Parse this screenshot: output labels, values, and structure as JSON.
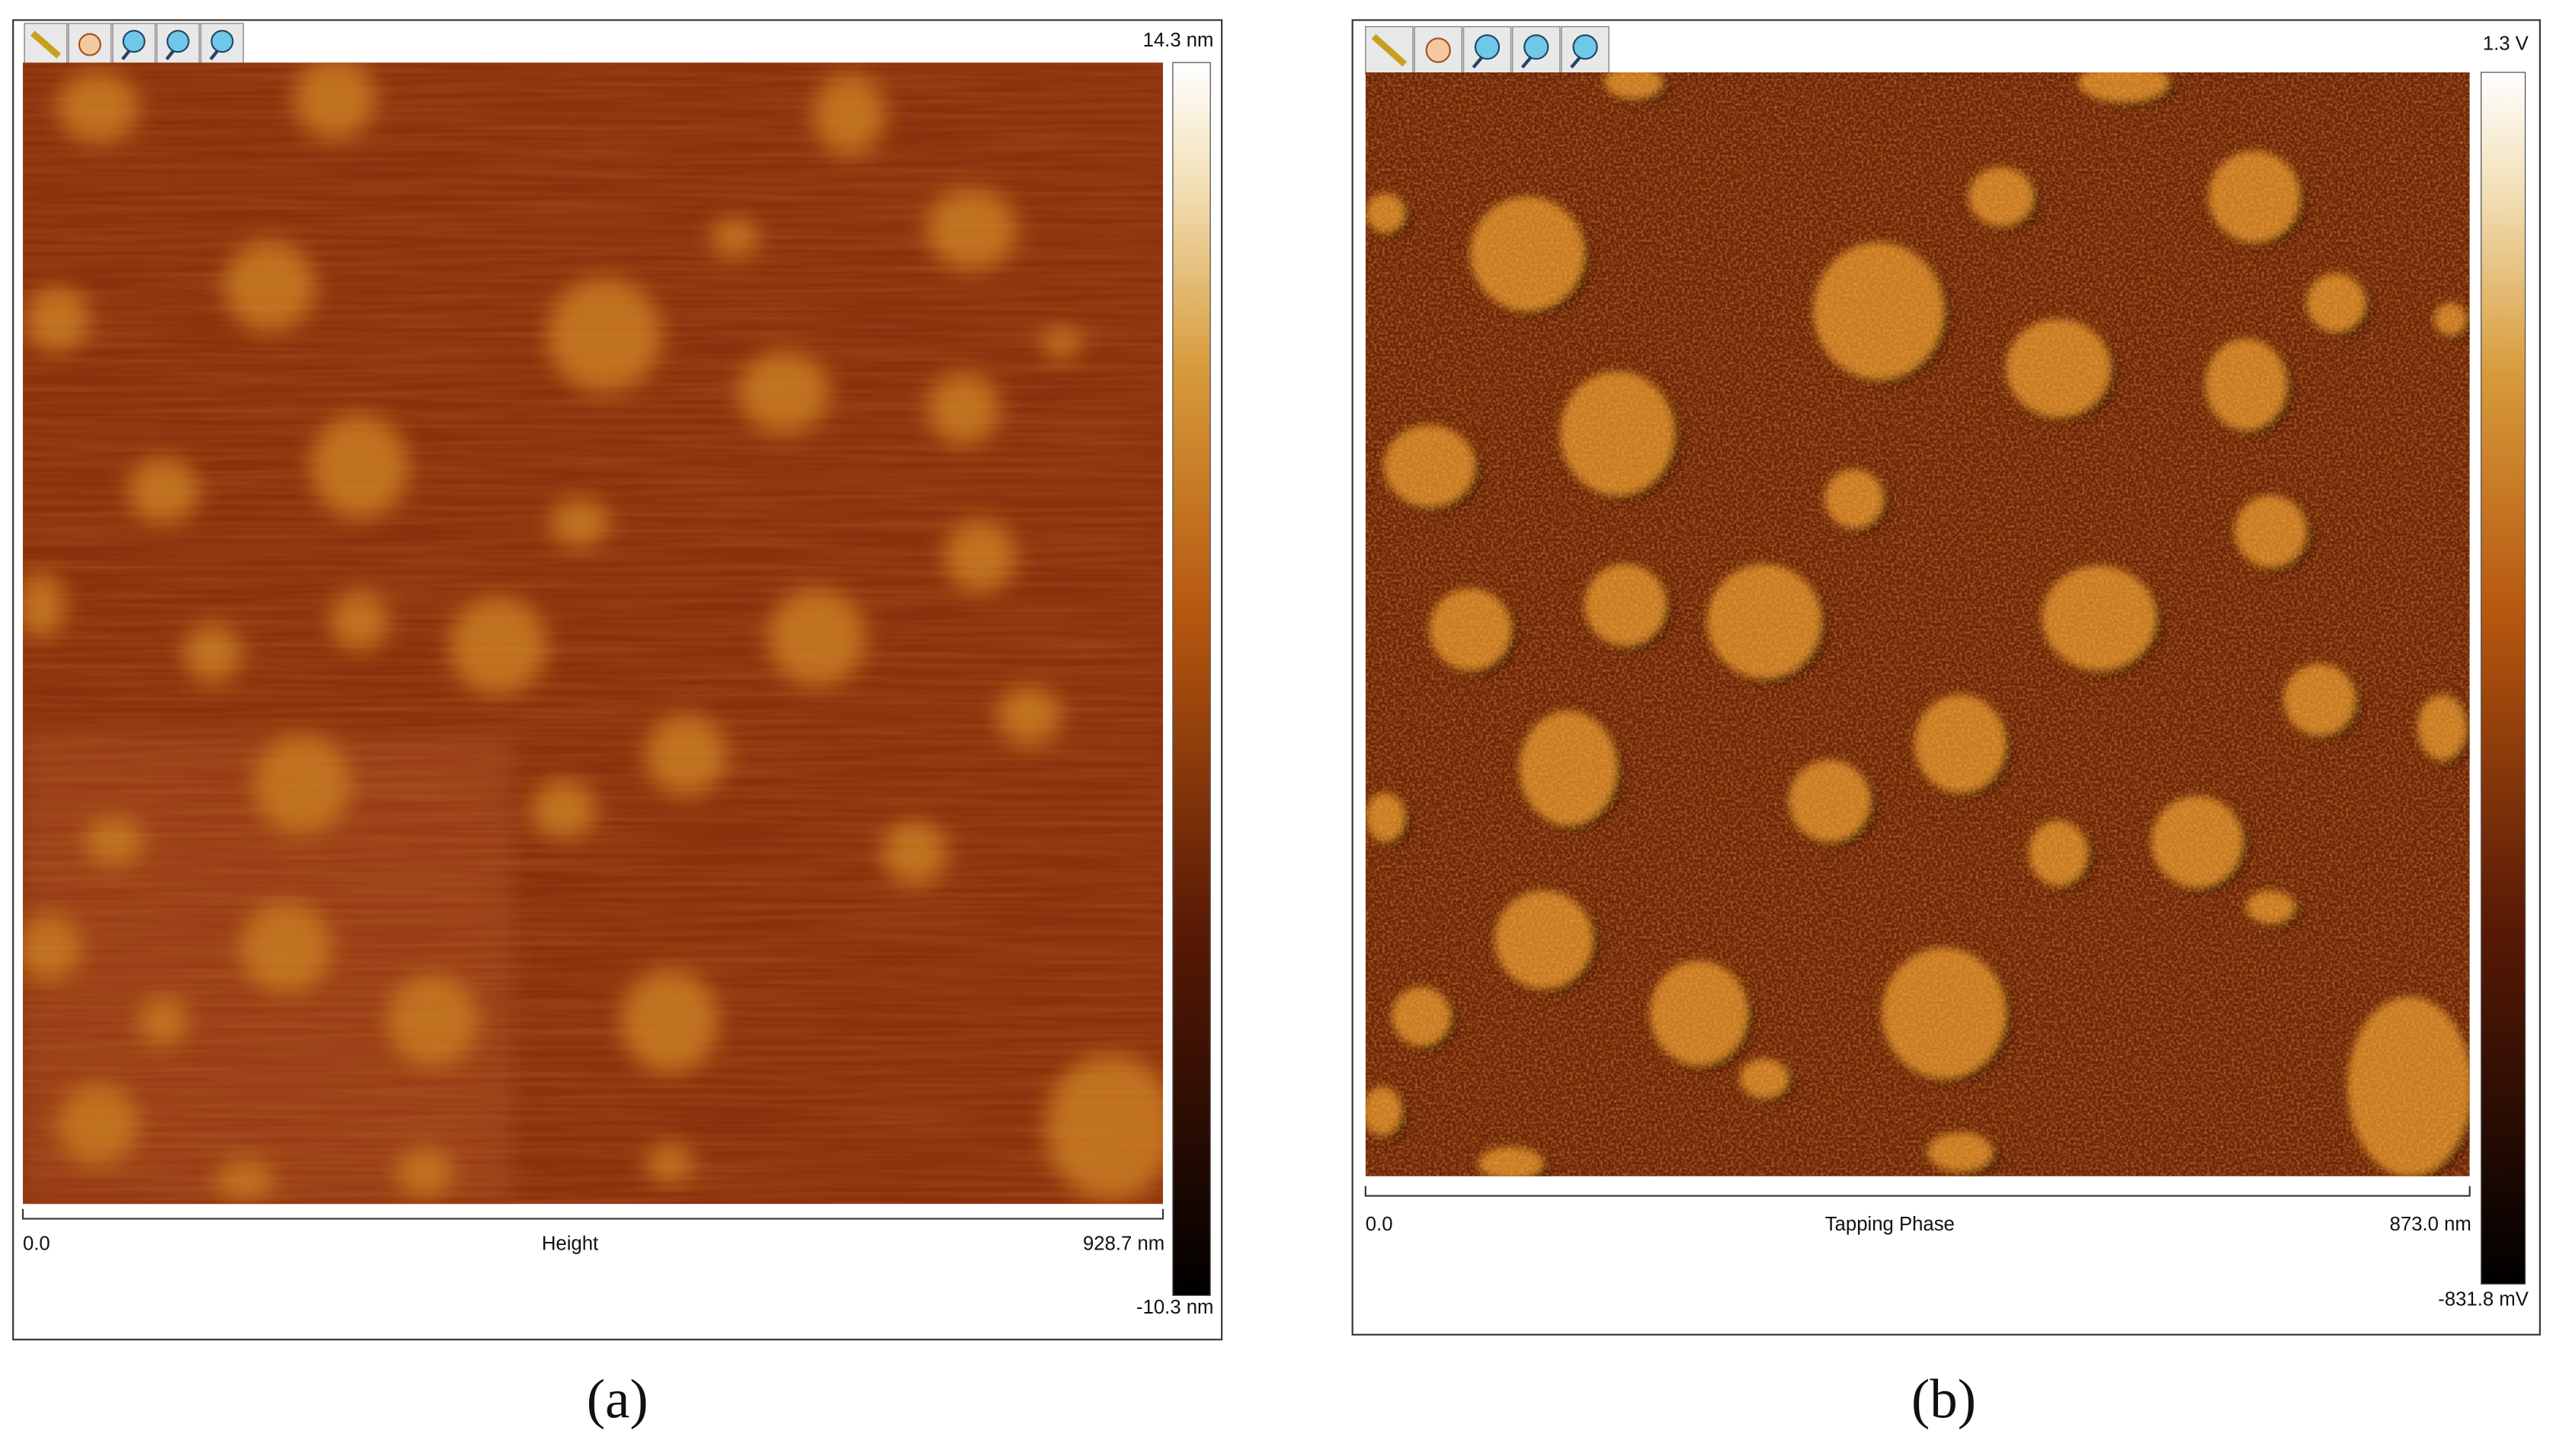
{
  "panels": [
    {
      "scale_max": "14.3 nm",
      "scale_min": "-10.3 nm",
      "axis_start": "0.0",
      "axis_title": "Height",
      "axis_end": "928.7 nm",
      "caption": "(a)"
    },
    {
      "scale_max": "1.3 V",
      "scale_min": "-831.8 mV",
      "axis_start": "0.0",
      "axis_title": "Tapping Phase",
      "axis_end": "873.0 nm",
      "caption": "(b)"
    }
  ]
}
